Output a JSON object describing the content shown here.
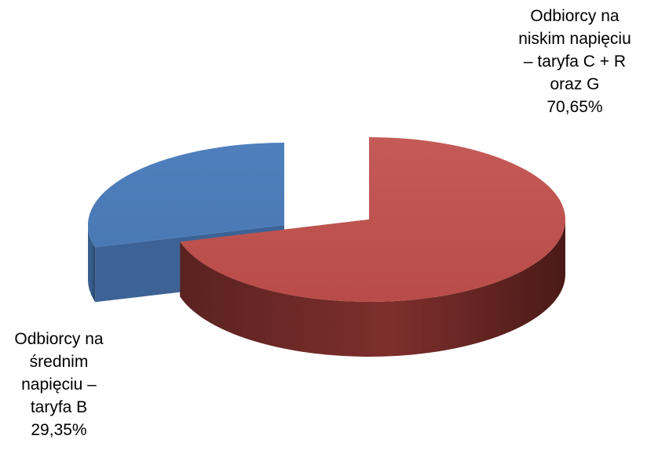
{
  "chart_data": {
    "type": "pie",
    "style": "3d-exploded",
    "title": "",
    "slices": [
      {
        "label_lines": [
          "Odbiorcy na",
          "niskim napięciu",
          "– taryfa C + R",
          "oraz G"
        ],
        "value": 70.65,
        "value_text": "70,65%",
        "color": "#C0504D"
      },
      {
        "label_lines": [
          "Odbiorcy na",
          "średnim",
          "napięciu –",
          "taryfa B"
        ],
        "value": 29.35,
        "value_text": "29,35%",
        "color": "#4F81BD"
      }
    ],
    "legend": "none"
  }
}
